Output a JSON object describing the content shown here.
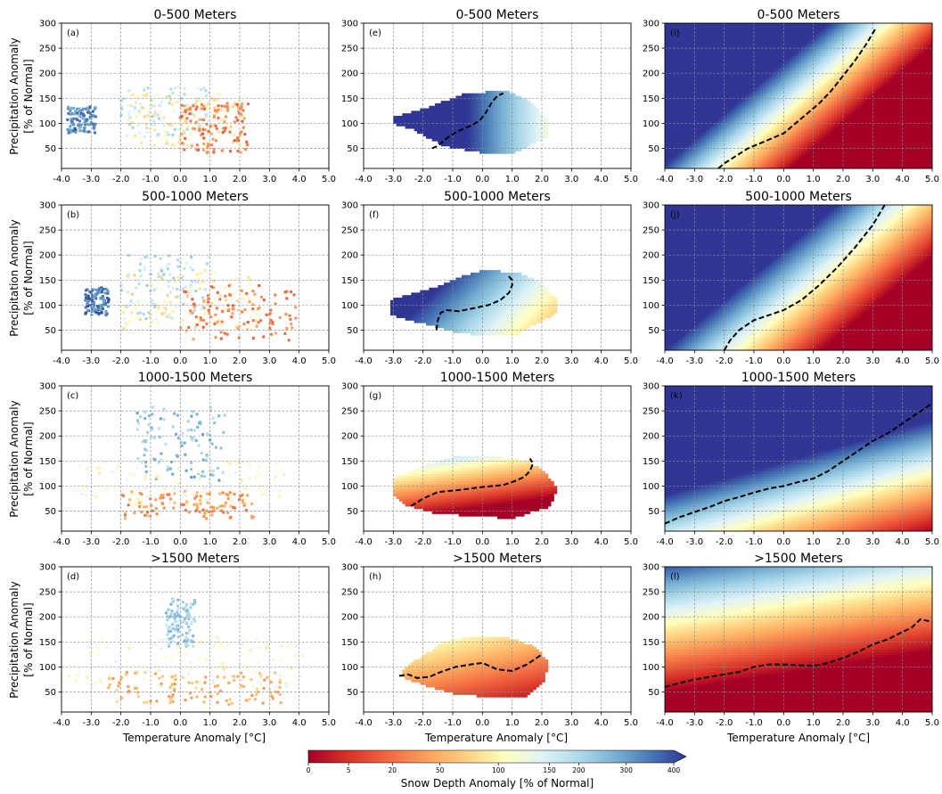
{
  "figure": {
    "xlabel": "Temperature Anomaly [°C]",
    "ylabel_line1": "Precipitation Anomaly",
    "ylabel_line2": "[% of Normal]",
    "colorbar_label": "Snow Depth Anomaly [% of Normal]",
    "colorbar_ticks": [
      "0",
      "5",
      "20",
      "50",
      "100",
      "150",
      "200",
      "300",
      "400"
    ]
  },
  "chart_data": [
    {
      "type": "scatter",
      "panel_label": "(a)",
      "title": "0-500 Meters",
      "xlim": [
        -4,
        5
      ],
      "ylim": [
        10,
        300
      ],
      "xticks": [
        "-4.0",
        "-3.0",
        "-2.0",
        "-1.0",
        "0.0",
        "1.0",
        "2.0",
        "3.0",
        "4.0",
        "5.0"
      ],
      "yticks": [
        "50",
        "100",
        "150",
        "200",
        "250",
        "300"
      ],
      "clusters": [
        {
          "snow_depth_pct": 300,
          "x": [
            -3.8,
            -2.8
          ],
          "y": [
            80,
            135
          ]
        },
        {
          "snow_depth_pct": 150,
          "x": [
            -2.0,
            1.0
          ],
          "y": [
            70,
            175
          ]
        },
        {
          "snow_depth_pct": 90,
          "x": [
            -1.8,
            2.2
          ],
          "y": [
            55,
            160
          ]
        },
        {
          "snow_depth_pct": 25,
          "x": [
            0.0,
            2.3
          ],
          "y": [
            40,
            140
          ]
        }
      ]
    },
    {
      "type": "scatter",
      "panel_label": "(b)",
      "title": "500-1000 Meters",
      "xlim": [
        -4,
        5
      ],
      "ylim": [
        10,
        300
      ],
      "xticks": [
        "-4.0",
        "-3.0",
        "-2.0",
        "-1.0",
        "0.0",
        "1.0",
        "2.0",
        "3.0",
        "4.0",
        "5.0"
      ],
      "yticks": [
        "50",
        "100",
        "150",
        "200",
        "250",
        "300"
      ],
      "clusters": [
        {
          "snow_depth_pct": 320,
          "x": [
            -3.2,
            -2.4
          ],
          "y": [
            80,
            135
          ]
        },
        {
          "snow_depth_pct": 160,
          "x": [
            -2.0,
            1.0
          ],
          "y": [
            70,
            200
          ]
        },
        {
          "snow_depth_pct": 90,
          "x": [
            -2.0,
            2.6
          ],
          "y": [
            50,
            170
          ]
        },
        {
          "snow_depth_pct": 25,
          "x": [
            0.0,
            3.9
          ],
          "y": [
            30,
            140
          ]
        }
      ]
    },
    {
      "type": "scatter",
      "panel_label": "(c)",
      "title": "1000-1500 Meters",
      "xlim": [
        -4,
        5
      ],
      "ylim": [
        10,
        300
      ],
      "xticks": [
        "-4.0",
        "-3.0",
        "-2.0",
        "-1.0",
        "0.0",
        "1.0",
        "2.0",
        "3.0",
        "4.0",
        "5.0"
      ],
      "yticks": [
        "50",
        "100",
        "150",
        "200",
        "250",
        "300"
      ],
      "clusters": [
        {
          "snow_depth_pct": 220,
          "x": [
            -1.5,
            1.5
          ],
          "y": [
            110,
            260
          ]
        },
        {
          "snow_depth_pct": 110,
          "x": [
            -3.5,
            3.5
          ],
          "y": [
            60,
            150
          ]
        },
        {
          "snow_depth_pct": 35,
          "x": [
            -2.0,
            2.5
          ],
          "y": [
            35,
            90
          ]
        }
      ]
    },
    {
      "type": "scatter",
      "panel_label": "(d)",
      "title": ">1500 Meters",
      "xlim": [
        -4,
        5
      ],
      "ylim": [
        10,
        300
      ],
      "xticks": [
        "-4.0",
        "-3.0",
        "-2.0",
        "-1.0",
        "0.0",
        "1.0",
        "2.0",
        "3.0",
        "4.0",
        "5.0"
      ],
      "yticks": [
        "50",
        "100",
        "150",
        "200",
        "250",
        "300"
      ],
      "clusters": [
        {
          "snow_depth_pct": 200,
          "x": [
            -0.5,
            0.5
          ],
          "y": [
            140,
            235
          ]
        },
        {
          "snow_depth_pct": 110,
          "x": [
            -3.8,
            4.2
          ],
          "y": [
            60,
            160
          ]
        },
        {
          "snow_depth_pct": 50,
          "x": [
            -2.5,
            3.5
          ],
          "y": [
            25,
            90
          ]
        }
      ]
    },
    {
      "type": "heatmap",
      "panel_label": "(e)",
      "title": "0-500 Meters",
      "xlim": [
        -4,
        5
      ],
      "ylim": [
        10,
        300
      ],
      "xticks": [
        "-4.0",
        "-3.0",
        "-2.0",
        "-1.0",
        "0.0",
        "1.0",
        "2.0",
        "3.0",
        "4.0",
        "5.0"
      ],
      "yticks": [
        "50",
        "100",
        "150",
        "200",
        "250",
        "300"
      ],
      "colorscale": {
        "x": [
          -3.0,
          2.2
        ],
        "y": [
          40,
          165
        ],
        "t0": 0.92,
        "tx": -0.16,
        "ty": 0.0
      },
      "domain_hull": [
        [
          -3.0,
          100
        ],
        [
          -2.4,
          90
        ],
        [
          -1.3,
          55
        ],
        [
          0.1,
          40
        ],
        [
          1.0,
          40
        ],
        [
          2.3,
          75
        ],
        [
          2.2,
          105
        ],
        [
          1.6,
          145
        ],
        [
          0.8,
          165
        ],
        [
          -0.6,
          160
        ],
        [
          -1.9,
          130
        ],
        [
          -3.0,
          112
        ]
      ],
      "contour_100pct": {
        "x": [
          -1.7,
          -1.5,
          -1.3,
          -1.1,
          -0.8,
          -0.4,
          -0.1,
          0.1,
          0.3,
          0.5,
          0.7
        ],
        "y": [
          50,
          55,
          65,
          75,
          85,
          95,
          105,
          120,
          140,
          155,
          160
        ]
      }
    },
    {
      "type": "heatmap",
      "panel_label": "(f)",
      "title": "500-1000 Meters",
      "xlim": [
        -4,
        5
      ],
      "ylim": [
        10,
        300
      ],
      "xticks": [
        "-4.0",
        "-3.0",
        "-2.0",
        "-1.0",
        "0.0",
        "1.0",
        "2.0",
        "3.0",
        "4.0",
        "5.0"
      ],
      "yticks": [
        "50",
        "100",
        "150",
        "200",
        "250",
        "300"
      ],
      "colorscale": {
        "x": [
          -3.1,
          2.5
        ],
        "y": [
          40,
          170
        ],
        "t0": 0.75,
        "tx": -0.12,
        "ty": 0.002
      },
      "domain_hull": [
        [
          -3.1,
          80
        ],
        [
          -2.1,
          65
        ],
        [
          -0.8,
          45
        ],
        [
          0.0,
          40
        ],
        [
          1.1,
          40
        ],
        [
          2.5,
          85
        ],
        [
          2.5,
          110
        ],
        [
          2.0,
          145
        ],
        [
          1.2,
          165
        ],
        [
          0.1,
          170
        ],
        [
          -0.8,
          155
        ],
        [
          -1.6,
          135
        ],
        [
          -3.1,
          110
        ]
      ],
      "contour_100pct": {
        "x": [
          -1.55,
          -1.5,
          -1.4,
          -1.2,
          -0.8,
          -0.2,
          0.2,
          0.6,
          0.9,
          1.0,
          1.0,
          0.85
        ],
        "y": [
          50,
          70,
          85,
          90,
          88,
          95,
          100,
          110,
          125,
          140,
          150,
          160
        ]
      }
    },
    {
      "type": "heatmap",
      "panel_label": "(g)",
      "title": "1000-1500 Meters",
      "xlim": [
        -4,
        5
      ],
      "ylim": [
        10,
        300
      ],
      "xticks": [
        "-4.0",
        "-3.0",
        "-2.0",
        "-1.0",
        "0.0",
        "1.0",
        "2.0",
        "3.0",
        "4.0",
        "5.0"
      ],
      "yticks": [
        "50",
        "100",
        "150",
        "200",
        "250",
        "300"
      ],
      "colorscale": {
        "x": [
          -3.0,
          2.5
        ],
        "y": [
          35,
          160
        ],
        "t0": 0.25,
        "tx": -0.05,
        "ty": 0.006
      },
      "domain_hull": [
        [
          -3.0,
          85
        ],
        [
          -2.5,
          60
        ],
        [
          -1.5,
          45
        ],
        [
          0.0,
          40
        ],
        [
          1.0,
          35
        ],
        [
          2.3,
          60
        ],
        [
          2.5,
          95
        ],
        [
          2.1,
          130
        ],
        [
          1.5,
          150
        ],
        [
          0.5,
          160
        ],
        [
          -0.8,
          160
        ],
        [
          -2.0,
          140
        ],
        [
          -3.0,
          115
        ]
      ],
      "contour_100pct": {
        "x": [
          -2.4,
          -2.0,
          -1.5,
          -0.8,
          0.0,
          0.7,
          1.1,
          1.4,
          1.6,
          1.7,
          1.6
        ],
        "y": [
          60,
          75,
          88,
          92,
          98,
          102,
          110,
          118,
          130,
          145,
          155
        ]
      }
    },
    {
      "type": "heatmap",
      "panel_label": "(h)",
      "title": ">1500 Meters",
      "xlim": [
        -4,
        5
      ],
      "ylim": [
        10,
        300
      ],
      "xticks": [
        "-4.0",
        "-3.0",
        "-2.0",
        "-1.0",
        "0.0",
        "1.0",
        "2.0",
        "3.0",
        "4.0",
        "5.0"
      ],
      "yticks": [
        "50",
        "100",
        "150",
        "200",
        "250",
        "300"
      ],
      "colorscale": {
        "x": [
          -2.7,
          2.2
        ],
        "y": [
          40,
          160
        ],
        "t0": 0.3,
        "tx": -0.04,
        "ty": 0.003
      },
      "domain_hull": [
        [
          -2.7,
          80
        ],
        [
          -2.0,
          65
        ],
        [
          -0.8,
          45
        ],
        [
          0.5,
          40
        ],
        [
          1.4,
          40
        ],
        [
          2.1,
          70
        ],
        [
          2.2,
          110
        ],
        [
          1.8,
          140
        ],
        [
          0.8,
          160
        ],
        [
          -0.5,
          160
        ],
        [
          -1.3,
          150
        ],
        [
          -2.7,
          95
        ]
      ],
      "contour_100pct": {
        "x": [
          -2.8,
          -2.5,
          -2.2,
          -1.8,
          -1.4,
          -0.9,
          -0.4,
          0.0,
          0.5,
          1.0,
          1.5,
          2.0
        ],
        "y": [
          82,
          85,
          78,
          80,
          90,
          100,
          105,
          108,
          95,
          92,
          105,
          125
        ]
      }
    },
    {
      "type": "heatmap",
      "panel_label": "(i)",
      "title": "0-500 Meters",
      "xlim": [
        -4,
        5
      ],
      "ylim": [
        10,
        300
      ],
      "xticks": [
        "-4.0",
        "-3.0",
        "-2.0",
        "-1.0",
        "0.0",
        "1.0",
        "2.0",
        "3.0",
        "4.0",
        "5.0"
      ],
      "yticks": [
        "50",
        "100",
        "150",
        "200",
        "250",
        "300"
      ],
      "colorscale": {
        "x": [
          -4,
          5
        ],
        "y": [
          10,
          300
        ],
        "t0": 0.45,
        "tx": -0.23,
        "ty": 0.0045
      },
      "contour_100pct": {
        "x": [
          -2.2,
          -2.0,
          -1.6,
          -1.2,
          -0.8,
          -0.4,
          0.0,
          0.4,
          0.8,
          1.2,
          1.6,
          2.0,
          2.4,
          2.8,
          3.1
        ],
        "y": [
          10,
          20,
          35,
          50,
          60,
          70,
          80,
          100,
          120,
          140,
          165,
          195,
          225,
          260,
          290
        ]
      }
    },
    {
      "type": "heatmap",
      "panel_label": "(j)",
      "title": "500-1000 Meters",
      "xlim": [
        -4,
        5
      ],
      "ylim": [
        10,
        300
      ],
      "xticks": [
        "-4.0",
        "-3.0",
        "-2.0",
        "-1.0",
        "0.0",
        "1.0",
        "2.0",
        "3.0",
        "4.0",
        "5.0"
      ],
      "yticks": [
        "50",
        "100",
        "150",
        "200",
        "250",
        "300"
      ],
      "colorscale": {
        "x": [
          -4,
          5
        ],
        "y": [
          10,
          300
        ],
        "t0": 0.58,
        "tx": -0.19,
        "ty": 0.0038
      },
      "contour_100pct": {
        "x": [
          -2.0,
          -1.8,
          -1.5,
          -1.0,
          -0.5,
          0.0,
          0.6,
          1.2,
          1.8,
          2.4,
          3.0,
          3.4
        ],
        "y": [
          10,
          30,
          50,
          70,
          80,
          90,
          110,
          140,
          175,
          215,
          260,
          300
        ]
      }
    },
    {
      "type": "heatmap",
      "panel_label": "(k)",
      "title": "1000-1500 Meters",
      "xlim": [
        -4,
        5
      ],
      "ylim": [
        10,
        300
      ],
      "xticks": [
        "-4.0",
        "-3.0",
        "-2.0",
        "-1.0",
        "0.0",
        "1.0",
        "2.0",
        "3.0",
        "4.0",
        "5.0"
      ],
      "yticks": [
        "50",
        "100",
        "150",
        "200",
        "250",
        "300"
      ],
      "colorscale": {
        "x": [
          -4,
          5
        ],
        "y": [
          10,
          300
        ],
        "t0": 0.78,
        "tx": -0.075,
        "ty": 0.0045
      },
      "contour_100pct": {
        "x": [
          -4.0,
          -3.5,
          -3.0,
          -2.5,
          -2.0,
          -1.5,
          -1.0,
          -0.5,
          0.0,
          0.5,
          1.0,
          1.5,
          2.0,
          2.5,
          3.0,
          3.5,
          4.0,
          4.5,
          5.0
        ],
        "y": [
          25,
          38,
          48,
          58,
          70,
          78,
          87,
          95,
          100,
          108,
          115,
          130,
          150,
          170,
          190,
          205,
          225,
          245,
          265
        ]
      }
    },
    {
      "type": "heatmap",
      "panel_label": "(l)",
      "title": ">1500 Meters",
      "xlim": [
        -4,
        5
      ],
      "ylim": [
        10,
        300
      ],
      "xticks": [
        "-4.0",
        "-3.0",
        "-2.0",
        "-1.0",
        "0.0",
        "1.0",
        "2.0",
        "3.0",
        "4.0",
        "5.0"
      ],
      "yticks": [
        "50",
        "100",
        "150",
        "200",
        "250",
        "300"
      ],
      "colorscale": {
        "x": [
          -4,
          5
        ],
        "y": [
          10,
          300
        ],
        "t0": 0.05,
        "tx": -0.035,
        "ty": 0.0038
      },
      "contour_100pct": {
        "x": [
          -4.0,
          -3.5,
          -3.0,
          -2.5,
          -2.0,
          -1.5,
          -1.0,
          -0.5,
          0.0,
          0.5,
          1.0,
          1.5,
          2.0,
          2.5,
          3.0,
          3.5,
          4.0,
          4.3,
          4.6,
          5.0
        ],
        "y": [
          60,
          68,
          75,
          80,
          85,
          90,
          100,
          105,
          105,
          103,
          102,
          108,
          118,
          130,
          145,
          155,
          170,
          178,
          195,
          190
        ]
      }
    }
  ]
}
